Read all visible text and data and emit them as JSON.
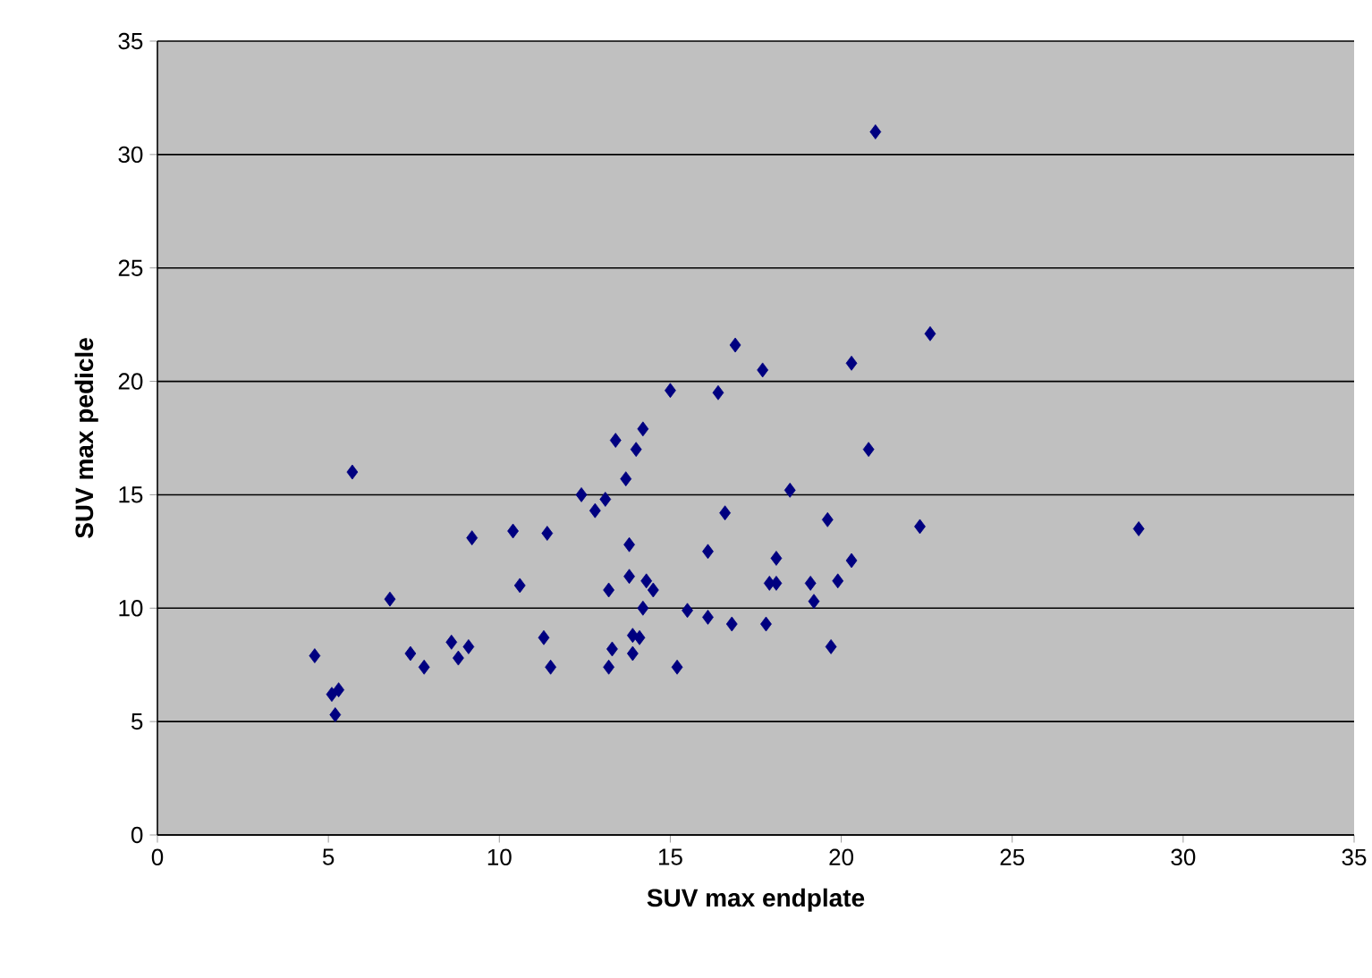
{
  "chart_data": {
    "type": "scatter",
    "xlabel": "SUV max endplate",
    "ylabel": "SUV max pedicle",
    "xlim": [
      0,
      35
    ],
    "ylim": [
      0,
      35
    ],
    "xticks": [
      0,
      5,
      10,
      15,
      20,
      25,
      30,
      35
    ],
    "yticks": [
      0,
      5,
      10,
      15,
      20,
      25,
      30,
      35
    ],
    "grid": "y",
    "marker": "diamond",
    "series": [
      {
        "color": "#000080",
        "x": [
          4.6,
          5.1,
          5.3,
          5.2,
          5.7,
          6.8,
          7.4,
          7.8,
          8.6,
          8.8,
          9.1,
          9.2,
          10.4,
          10.6,
          11.3,
          11.4,
          11.5,
          12.4,
          12.8,
          13.1,
          13.2,
          13.2,
          13.3,
          13.4,
          13.7,
          13.8,
          13.8,
          13.9,
          13.9,
          14.0,
          14.1,
          14.2,
          14.2,
          14.3,
          14.5,
          15.0,
          15.2,
          15.5,
          16.1,
          16.1,
          16.4,
          16.6,
          16.8,
          16.9,
          17.7,
          17.8,
          17.9,
          18.1,
          18.1,
          18.5,
          19.1,
          19.2,
          19.6,
          19.7,
          19.9,
          20.3,
          20.3,
          20.8,
          21.0,
          22.3,
          22.6,
          28.7
        ],
        "values": [
          7.9,
          6.2,
          6.4,
          5.3,
          16.0,
          10.4,
          8.0,
          7.4,
          8.5,
          7.8,
          8.3,
          13.1,
          13.4,
          11.0,
          8.7,
          13.3,
          7.4,
          15.0,
          14.3,
          14.8,
          7.4,
          10.8,
          8.2,
          17.4,
          15.7,
          12.8,
          11.4,
          8.0,
          8.8,
          17.0,
          8.7,
          10.0,
          17.9,
          11.2,
          10.8,
          19.6,
          7.4,
          9.9,
          12.5,
          9.6,
          19.5,
          14.2,
          9.3,
          21.6,
          20.5,
          9.3,
          11.1,
          12.2,
          11.1,
          15.2,
          11.1,
          10.3,
          13.9,
          8.3,
          11.2,
          20.8,
          12.1,
          17.0,
          31.0,
          13.6,
          22.1,
          13.5
        ]
      }
    ]
  }
}
